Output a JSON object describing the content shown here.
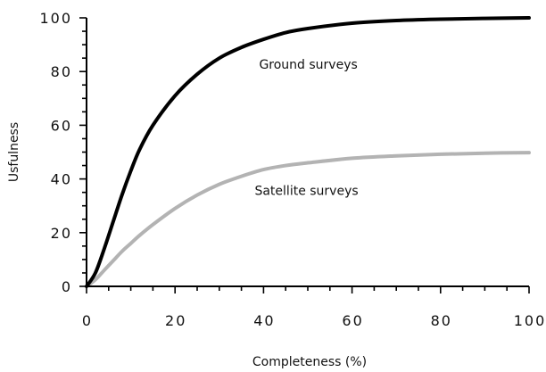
{
  "chart_data": {
    "type": "line",
    "title": "",
    "xlabel": "Completeness (%)",
    "ylabel": "Usfulness",
    "xlim": [
      0,
      100
    ],
    "ylim": [
      0,
      100
    ],
    "x_ticks": [
      0,
      20,
      40,
      60,
      80,
      100
    ],
    "x_tick_labels": [
      "0",
      "20",
      "40",
      "60",
      "80",
      "100"
    ],
    "y_ticks": [
      0,
      20,
      40,
      60,
      80,
      100
    ],
    "y_tick_labels": [
      "0",
      "20",
      "40",
      "60",
      "80",
      "100"
    ],
    "grid": false,
    "legend": "none",
    "series": [
      {
        "name": "Ground surveys",
        "color": "#000000",
        "x": [
          0,
          2,
          4,
          6,
          8,
          10,
          12,
          15,
          20,
          25,
          30,
          35,
          40,
          45,
          50,
          60,
          70,
          80,
          90,
          100
        ],
        "y": [
          0,
          5,
          14,
          24,
          34,
          43,
          51,
          60,
          71,
          79,
          85,
          89,
          92,
          94.5,
          96,
          98,
          99,
          99.5,
          99.8,
          100
        ]
      },
      {
        "name": "Satellite surveys",
        "color": "#b3b3b3",
        "x": [
          0,
          2,
          4,
          6,
          8,
          10,
          12,
          15,
          20,
          25,
          30,
          35,
          40,
          45,
          50,
          60,
          70,
          80,
          90,
          100
        ],
        "y": [
          0,
          2.5,
          6,
          9.5,
          13,
          16,
          19,
          23,
          29,
          34,
          38,
          41,
          43.5,
          45,
          46,
          47.7,
          48.6,
          49.2,
          49.6,
          49.8
        ]
      }
    ],
    "annotations": [
      {
        "text": "Ground surveys",
        "x": 39,
        "y": 81
      },
      {
        "text": "Satellite surveys",
        "x": 38,
        "y": 34
      }
    ]
  }
}
